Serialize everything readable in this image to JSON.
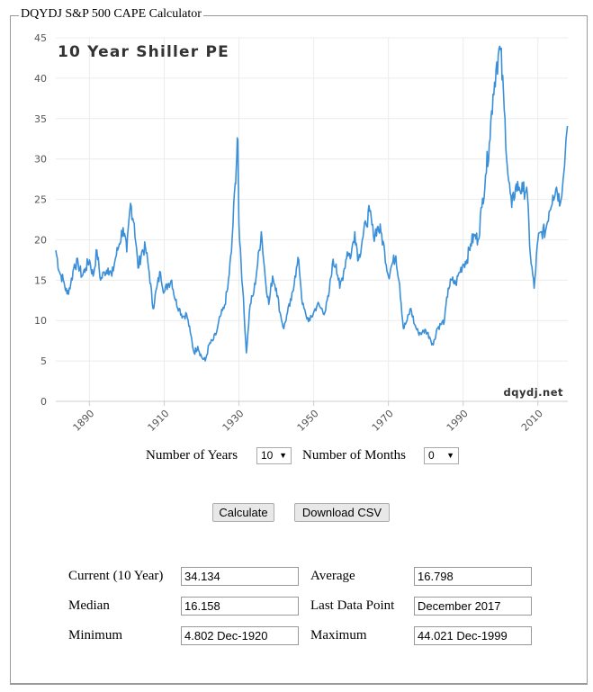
{
  "legend": "DQYDJ S&P 500 CAPE Calculator",
  "chart_data": {
    "type": "line",
    "title": "10 Year Shiller PE",
    "watermark": "dqydj.net",
    "ylim": [
      0,
      45
    ],
    "xlim": [
      1881,
      2018
    ],
    "yticks": [
      "0",
      "5",
      "10",
      "15",
      "20",
      "25",
      "30",
      "35",
      "40",
      "45"
    ],
    "xticks": [
      "1890",
      "1910",
      "1930",
      "1950",
      "1970",
      "1990",
      "2010"
    ],
    "line_color": "#3a8fd9",
    "series": [
      {
        "x": [
          1881,
          1882,
          1883,
          1884,
          1885,
          1886,
          1887,
          1888,
          1889,
          1890,
          1891,
          1892,
          1893,
          1894,
          1895,
          1896,
          1897,
          1898,
          1899,
          1900,
          1901,
          1902,
          1903,
          1904,
          1905,
          1906,
          1907,
          1908,
          1909,
          1910,
          1911,
          1912,
          1913,
          1914,
          1915,
          1916,
          1917,
          1918,
          1919,
          1920,
          1921,
          1922,
          1923,
          1924,
          1925,
          1926,
          1927,
          1928,
          1929,
          1929.7,
          1930,
          1931,
          1932,
          1933,
          1934,
          1935,
          1936,
          1937,
          1938,
          1939,
          1940,
          1941,
          1942,
          1943,
          1944,
          1945,
          1946,
          1947,
          1948,
          1949,
          1950,
          1951,
          1952,
          1953,
          1954,
          1955,
          1956,
          1957,
          1958,
          1959,
          1960,
          1961,
          1962,
          1963,
          1964,
          1965,
          1966,
          1967,
          1968,
          1969,
          1970,
          1971,
          1972,
          1973,
          1974,
          1975,
          1976,
          1977,
          1978,
          1979,
          1980,
          1981,
          1982,
          1983,
          1984,
          1985,
          1986,
          1987,
          1988,
          1989,
          1990,
          1991,
          1992,
          1993,
          1994,
          1995,
          1996,
          1997,
          1998,
          1999,
          2000,
          2001,
          2002,
          2003,
          2004,
          2005,
          2006,
          2007,
          2008,
          2009,
          2010,
          2011,
          2012,
          2013,
          2014,
          2015,
          2016,
          2017.9
        ],
        "values": [
          18.7,
          16.0,
          15.0,
          13.3,
          14.5,
          17.0,
          17.0,
          15.5,
          16.5,
          17.5,
          15.5,
          18.7,
          15.0,
          16.0,
          16.5,
          15.5,
          17.8,
          19.5,
          21.5,
          18.5,
          24.5,
          22.0,
          16.5,
          18.5,
          19.0,
          16.0,
          11.5,
          14.0,
          16.0,
          13.5,
          14.5,
          15.0,
          12.5,
          11.5,
          10.5,
          10.8,
          8.5,
          6.0,
          6.8,
          5.5,
          5.0,
          7.0,
          7.5,
          8.5,
          10.5,
          11.5,
          14.0,
          18.5,
          27.0,
          32.3,
          22.0,
          14.0,
          6.0,
          12.0,
          13.5,
          17.0,
          21.0,
          15.5,
          12.0,
          15.5,
          14.0,
          11.0,
          9.0,
          11.0,
          12.5,
          15.5,
          17.5,
          12.0,
          10.5,
          10.0,
          11.0,
          12.0,
          11.5,
          11.0,
          13.0,
          17.0,
          17.0,
          14.0,
          16.0,
          18.5,
          18.0,
          21.0,
          17.5,
          20.0,
          22.0,
          23.5,
          20.5,
          21.5,
          21.0,
          18.5,
          15.5,
          17.0,
          18.0,
          14.5,
          9.0,
          10.0,
          11.5,
          9.5,
          8.5,
          8.5,
          8.8,
          8.0,
          7.0,
          9.0,
          9.5,
          10.0,
          14.0,
          15.0,
          14.5,
          16.0,
          17.0,
          17.5,
          19.5,
          20.5,
          20.0,
          24.0,
          28.0,
          32.0,
          38.0,
          42.0,
          43.5,
          36.0,
          28.0,
          24.0,
          26.5,
          26.5,
          26.0,
          26.5,
          18.0,
          14.0,
          20.0,
          21.0,
          21.0,
          23.5,
          25.5,
          26.5,
          24.5,
          34.1
        ]
      }
    ]
  },
  "controls": {
    "years_label": "Number of Years",
    "years_value": "10",
    "months_label": "Number of Months",
    "months_value": "0",
    "calculate": "Calculate",
    "download": "Download CSV"
  },
  "results": {
    "current_label": "Current (10 Year)",
    "current_value": "34.134",
    "average_label": "Average",
    "average_value": "16.798",
    "median_label": "Median",
    "median_value": "16.158",
    "last_label": "Last Data Point",
    "last_value": "December 2017",
    "min_label": "Minimum",
    "min_value": "4.802 Dec-1920",
    "max_label": "Maximum",
    "max_value": "44.021 Dec-1999"
  }
}
